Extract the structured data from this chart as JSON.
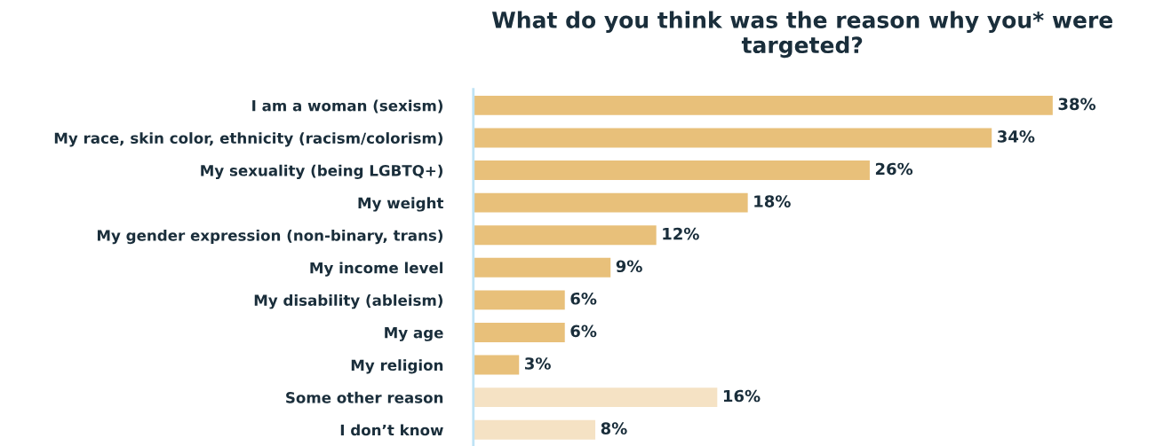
{
  "chart_data": {
    "type": "bar",
    "orientation": "horizontal",
    "title": "What do you think was the reason why you* were targeted?",
    "categories": [
      "I am a woman (sexism)",
      "My race, skin color, ethnicity (racism/colorism)",
      "My sexuality (being LGBTQ+)",
      "My weight",
      "My gender expression (non-binary, trans)",
      "My income level",
      "My disability (ableism)",
      "My age",
      "My religion",
      "Some other reason",
      "I don’t know"
    ],
    "values": [
      38,
      34,
      26,
      18,
      12,
      9,
      6,
      6,
      3,
      16,
      8
    ],
    "value_labels": [
      "38%",
      "34%",
      "26%",
      "18%",
      "12%",
      "9%",
      "6%",
      "6%",
      "3%",
      "16%",
      "8%"
    ],
    "colors": [
      "#e8c07a",
      "#e8c07a",
      "#e8c07a",
      "#e8c07a",
      "#e8c07a",
      "#e8c07a",
      "#e8c07a",
      "#e8c07a",
      "#e8c07a",
      "#f5e2c4",
      "#f5e2c4"
    ],
    "grid": false,
    "legend": false
  }
}
